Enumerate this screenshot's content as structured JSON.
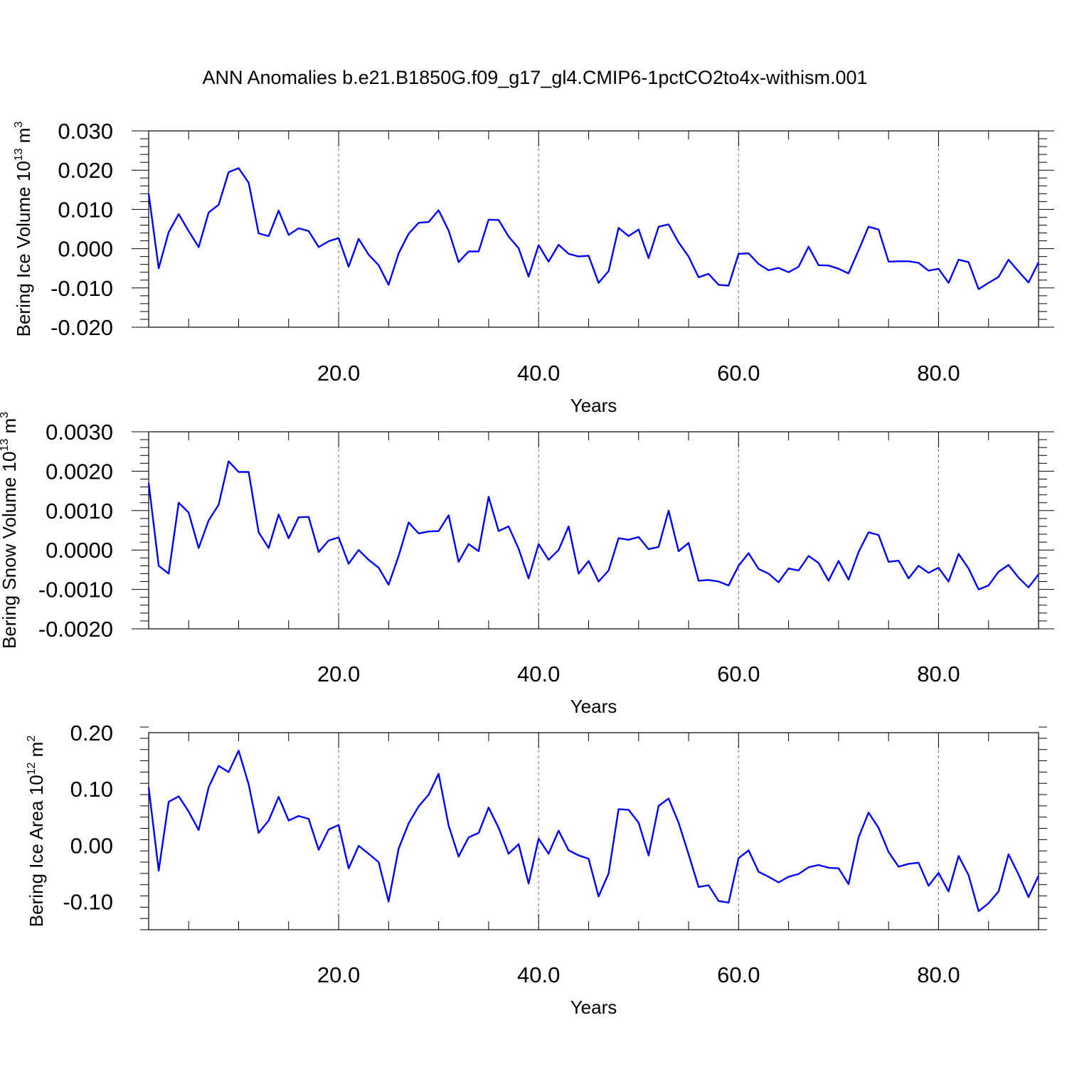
{
  "figure": {
    "title": "ANN Anomalies b.e21.B1850G.f09_g17_gl4.CMIP6-1pctCO2to4x-withism.001"
  },
  "chart_data": [
    {
      "type": "line",
      "xlabel": "Years",
      "ylabel": {
        "text": "Bering Ice Volume 10",
        "exp": "13",
        "unit": " m",
        "unit_exp": "3"
      },
      "xlim": [
        1,
        90
      ],
      "ylim": [
        -0.02,
        0.03
      ],
      "xticks": [
        20,
        40,
        60,
        80
      ],
      "xtick_labels": [
        "20.0",
        "40.0",
        "60.0",
        "80.0"
      ],
      "yticks": [
        -0.02,
        -0.01,
        0.0,
        0.01,
        0.02,
        0.03
      ],
      "ytick_labels": [
        "-0.020",
        "-0.010",
        "0.000",
        "0.010",
        "0.020",
        "0.030"
      ],
      "grid": "vertical dashed at major x ticks",
      "color": "#0000ff",
      "series": [
        {
          "x": [
            1,
            2,
            3,
            4,
            5,
            6,
            7,
            8,
            9,
            10,
            11,
            12,
            13,
            14,
            15,
            16,
            17,
            18,
            19,
            20,
            21,
            22,
            23,
            24,
            25,
            26,
            27,
            28,
            29,
            30,
            31,
            32,
            33,
            34,
            35,
            36,
            37,
            38,
            39,
            40,
            41,
            42,
            43,
            44,
            45,
            46,
            47,
            48,
            49,
            50,
            51,
            52,
            53,
            54,
            55,
            56,
            57,
            58,
            59,
            60,
            61,
            62,
            63,
            64,
            65,
            66,
            67,
            68,
            69,
            70,
            71,
            72,
            73,
            74,
            75,
            76,
            77,
            78,
            79,
            80,
            81,
            82,
            83,
            84,
            85,
            86,
            87,
            88,
            89,
            90
          ],
          "values": [
            0.014,
            -0.005,
            0.0042,
            0.0088,
            0.0045,
            0.0004,
            0.0092,
            0.0112,
            0.0195,
            0.0205,
            0.0168,
            0.0039,
            0.0032,
            0.0097,
            0.0035,
            0.0052,
            0.0045,
            0.0004,
            0.0019,
            0.0027,
            -0.0046,
            0.0025,
            -0.0015,
            -0.0042,
            -0.0092,
            -0.0012,
            0.0038,
            0.0066,
            0.0068,
            0.0098,
            0.0046,
            -0.0034,
            -0.0007,
            -0.0007,
            0.0074,
            0.0073,
            0.0031,
            0.0001,
            -0.0071,
            0.0009,
            -0.0033,
            0.001,
            -0.0013,
            -0.002,
            -0.0018,
            -0.0087,
            -0.0057,
            0.0053,
            0.0032,
            0.0049,
            -0.0024,
            0.0056,
            0.0062,
            0.0016,
            -0.002,
            -0.0073,
            -0.0064,
            -0.0092,
            -0.0094,
            -0.0013,
            -0.0012,
            -0.0039,
            -0.0055,
            -0.0049,
            -0.006,
            -0.0046,
            0.0005,
            -0.0042,
            -0.0043,
            -0.0051,
            -0.0063,
            -0.0004,
            0.0056,
            0.0049,
            -0.0033,
            -0.0032,
            -0.0032,
            -0.0036,
            -0.0056,
            -0.0051,
            -0.0087,
            -0.0028,
            -0.0034,
            -0.0103,
            -0.0087,
            -0.0072,
            -0.0028,
            -0.0058,
            -0.0086,
            -0.0035
          ]
        }
      ]
    },
    {
      "type": "line",
      "xlabel": "Years",
      "ylabel": {
        "text": "Bering Snow Volume 10",
        "exp": "13",
        "unit": " m",
        "unit_exp": "3"
      },
      "xlim": [
        1,
        90
      ],
      "ylim": [
        -0.002,
        0.003
      ],
      "xticks": [
        20,
        40,
        60,
        80
      ],
      "xtick_labels": [
        "20.0",
        "40.0",
        "60.0",
        "80.0"
      ],
      "yticks": [
        -0.002,
        -0.001,
        0.0,
        0.001,
        0.002,
        0.003
      ],
      "ytick_labels": [
        "-0.0020",
        "-0.0010",
        "0.0000",
        "0.0010",
        "0.0020",
        "0.0030"
      ],
      "grid": "vertical dashed at major x ticks",
      "color": "#0000ff",
      "series": [
        {
          "x": [
            1,
            2,
            3,
            4,
            5,
            6,
            7,
            8,
            9,
            10,
            11,
            12,
            13,
            14,
            15,
            16,
            17,
            18,
            19,
            20,
            21,
            22,
            23,
            24,
            25,
            26,
            27,
            28,
            29,
            30,
            31,
            32,
            33,
            34,
            35,
            36,
            37,
            38,
            39,
            40,
            41,
            42,
            43,
            44,
            45,
            46,
            47,
            48,
            49,
            50,
            51,
            52,
            53,
            54,
            55,
            56,
            57,
            58,
            59,
            60,
            61,
            62,
            63,
            64,
            65,
            66,
            67,
            68,
            69,
            70,
            71,
            72,
            73,
            74,
            75,
            76,
            77,
            78,
            79,
            80,
            81,
            82,
            83,
            84,
            85,
            86,
            87,
            88,
            89,
            90
          ],
          "values": [
            0.0017,
            -0.0004,
            -0.0006,
            0.0012,
            0.00095,
            5e-05,
            0.00075,
            0.00115,
            0.00225,
            0.00198,
            0.00198,
            0.00045,
            5e-05,
            0.0009,
            0.0003,
            0.00083,
            0.00084,
            -5e-05,
            0.00024,
            0.00032,
            -0.00035,
            0.0,
            -0.00025,
            -0.00045,
            -0.00088,
            -0.00015,
            0.0007,
            0.00042,
            0.00047,
            0.00048,
            0.00088,
            -0.0003,
            0.00015,
            -3e-05,
            0.00135,
            0.00048,
            0.0006,
            3e-05,
            -0.00072,
            0.00015,
            -0.00025,
            0.0,
            0.0006,
            -0.0006,
            -0.00028,
            -0.0008,
            -0.00052,
            0.0003,
            0.00026,
            0.00033,
            2e-05,
            8e-05,
            0.001,
            -3e-05,
            0.00018,
            -0.00078,
            -0.00076,
            -0.0008,
            -0.0009,
            -0.0004,
            -8e-05,
            -0.00048,
            -0.0006,
            -0.00082,
            -0.00047,
            -0.00052,
            -0.00015,
            -0.00033,
            -0.00078,
            -0.00028,
            -0.00075,
            -5e-05,
            0.00045,
            0.00038,
            -0.0003,
            -0.00027,
            -0.00072,
            -0.0004,
            -0.00058,
            -0.00045,
            -0.0008,
            -0.0001,
            -0.00047,
            -0.001,
            -0.0009,
            -0.00055,
            -0.00038,
            -0.0007,
            -0.00095,
            -0.00062
          ]
        }
      ]
    },
    {
      "type": "line",
      "xlabel": "Years",
      "ylabel": {
        "text": "Bering Ice Area 10",
        "exp": "12",
        "unit": " m",
        "unit_exp": "2"
      },
      "xlim": [
        1,
        90
      ],
      "ylim": [
        -0.15,
        0.2
      ],
      "xticks": [
        20,
        40,
        60,
        80
      ],
      "xtick_labels": [
        "20.0",
        "40.0",
        "60.0",
        "80.0"
      ],
      "yticks": [
        -0.1,
        0.0,
        0.1,
        0.2
      ],
      "ytick_labels": [
        "-0.10",
        "0.00",
        "0.10",
        "0.20"
      ],
      "grid": "vertical dashed at major x ticks",
      "color": "#0000ff",
      "series": [
        {
          "x": [
            1,
            2,
            3,
            4,
            5,
            6,
            7,
            8,
            9,
            10,
            11,
            12,
            13,
            14,
            15,
            16,
            17,
            18,
            19,
            20,
            21,
            22,
            23,
            24,
            25,
            26,
            27,
            28,
            29,
            30,
            31,
            32,
            33,
            34,
            35,
            36,
            37,
            38,
            39,
            40,
            41,
            42,
            43,
            44,
            45,
            46,
            47,
            48,
            49,
            50,
            51,
            52,
            53,
            54,
            55,
            56,
            57,
            58,
            59,
            60,
            61,
            62,
            63,
            64,
            65,
            66,
            67,
            68,
            69,
            70,
            71,
            72,
            73,
            74,
            75,
            76,
            77,
            78,
            79,
            80,
            81,
            82,
            83,
            84,
            85,
            86,
            87,
            88,
            89,
            90
          ],
          "values": [
            0.103,
            -0.045,
            0.077,
            0.087,
            0.06,
            0.027,
            0.103,
            0.141,
            0.13,
            0.168,
            0.108,
            0.022,
            0.044,
            0.086,
            0.044,
            0.052,
            0.047,
            -0.008,
            0.028,
            0.036,
            -0.041,
            -0.001,
            -0.015,
            -0.03,
            -0.1,
            -0.006,
            0.039,
            0.069,
            0.09,
            0.127,
            0.035,
            -0.02,
            0.014,
            0.022,
            0.067,
            0.031,
            -0.015,
            0.002,
            -0.068,
            0.012,
            -0.015,
            0.026,
            -0.009,
            -0.018,
            -0.024,
            -0.091,
            -0.05,
            0.064,
            0.063,
            0.04,
            -0.018,
            0.07,
            0.083,
            0.04,
            -0.016,
            -0.074,
            -0.071,
            -0.099,
            -0.102,
            -0.023,
            -0.009,
            -0.047,
            -0.056,
            -0.066,
            -0.056,
            -0.051,
            -0.039,
            -0.035,
            -0.04,
            -0.041,
            -0.069,
            0.014,
            0.058,
            0.031,
            -0.012,
            -0.038,
            -0.033,
            -0.031,
            -0.072,
            -0.049,
            -0.082,
            -0.019,
            -0.053,
            -0.117,
            -0.103,
            -0.082,
            -0.016,
            -0.052,
            -0.092,
            -0.054
          ]
        }
      ]
    }
  ]
}
